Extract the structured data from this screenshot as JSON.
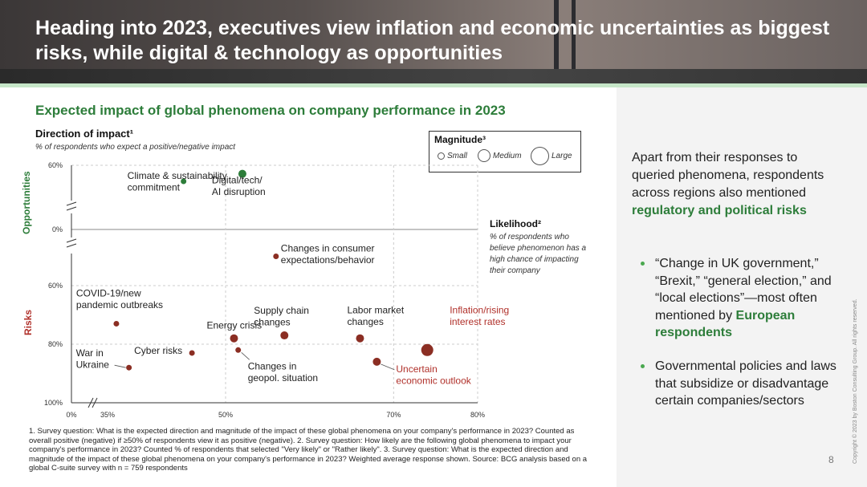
{
  "header": {
    "title": "Heading into 2023, executives view inflation and economic uncertainties as biggest risks, while digital & technology as opportunities"
  },
  "chart_title": "Expected impact of global phenomena on company performance in 2023",
  "direction": {
    "title": "Direction of impact¹",
    "subtitle": "% of respondents who expect a positive/negative impact"
  },
  "magnitude_legend": {
    "title": "Magnitude³",
    "small": "Small",
    "medium": "Medium",
    "large": "Large"
  },
  "likelihood": {
    "title": "Likelihood²",
    "subtitle": "% of respondents who believe phenomenon has a high chance of impacting their company"
  },
  "axis_side_labels": {
    "opportunities": "Opportunities",
    "risks": "Risks"
  },
  "colors": {
    "green": "#2d7d3a",
    "risk": "#8b2e23",
    "risk_label": "#b0302a"
  },
  "chart_data": {
    "type": "scatter",
    "x_axis": {
      "ticks": [
        "0%",
        "35%",
        "50%",
        "70%",
        "80%"
      ],
      "tick_values": [
        0,
        35,
        50,
        70,
        80
      ],
      "range": [
        0,
        80
      ],
      "break_between": [
        0,
        35
      ]
    },
    "y_axis_opportunities": {
      "ticks": [
        "60%",
        "0%"
      ],
      "tick_values": [
        60,
        0
      ]
    },
    "y_axis_risks": {
      "ticks": [
        "60%",
        "80%",
        "100%"
      ],
      "tick_values": [
        60,
        80,
        100
      ]
    },
    "points": [
      {
        "group": "opportunity",
        "label": "Climate & sustainability commitment",
        "x": 45,
        "y": 45,
        "size": "small",
        "color": "green"
      },
      {
        "group": "opportunity",
        "label": "Digital/tech/ AI disruption",
        "x": 52,
        "y": 52,
        "size": "medium",
        "color": "green"
      },
      {
        "group": "risk",
        "label": "Changes in consumer expectations/behavior",
        "x": 56,
        "y": 50,
        "size": "small",
        "color": "risk"
      },
      {
        "group": "risk",
        "label": "COVID-19/new pandemic outbreaks",
        "x": 37,
        "y": 73,
        "size": "small",
        "color": "risk"
      },
      {
        "group": "risk",
        "label": "Energy crisis",
        "x": 51,
        "y": 78,
        "size": "medium",
        "color": "risk"
      },
      {
        "group": "risk",
        "label": "Changes in geopol. situation",
        "x": 51.5,
        "y": 82,
        "size": "small",
        "color": "risk"
      },
      {
        "group": "risk",
        "label": "War in Ukraine",
        "x": 38.5,
        "y": 88,
        "size": "small",
        "color": "risk"
      },
      {
        "group": "risk",
        "label": "Cyber risks",
        "x": 46,
        "y": 83,
        "size": "small",
        "color": "risk"
      },
      {
        "group": "risk",
        "label": "Supply chain changes",
        "x": 57,
        "y": 77,
        "size": "medium",
        "color": "risk"
      },
      {
        "group": "risk",
        "label": "Labor market changes",
        "x": 66,
        "y": 78,
        "size": "medium",
        "color": "risk"
      },
      {
        "group": "risk",
        "label": "Uncertain economic outlook",
        "x": 68,
        "y": 86,
        "size": "medium",
        "color": "risk"
      },
      {
        "group": "risk",
        "label": "Inflation/rising interest rates",
        "x": 74,
        "y": 82,
        "size": "large",
        "color": "risk"
      }
    ]
  },
  "footnote": "1. Survey question: What is the expected direction and magnitude of the impact of these global phenomena on your company's performance in 2023? Counted as overall positive (negative) if ≥50% of respondents view it as positive (negative). 2. Survey question: How likely are the following global phenomena to impact your company's performance in 2023? Counted % of respondents that selected \"Very likely\" or \"Rather likely\". 3. Survey question: What is the expected direction and magnitude of the impact of these global phenomena on your company's performance in 2023? Weighted average response shown.  Source: BCG analysis based on a global C-suite survey with n = 759 respondents",
  "right_panel": {
    "intro": "Apart from their responses to queried phenomena, respondents across regions also mentioned ",
    "intro_highlight": "regulatory and political risks",
    "bullet1_text": "“Change in UK government,” “Brexit,” “general election,”  and “local elections”—most often mentioned by ",
    "bullet1_highlight": "European respondents",
    "bullet2_text": "Governmental policies and laws that subsidize or disadvantage certain companies/sectors"
  },
  "page_number": "8",
  "copyright": "Copyright © 2023 by Boston Consulting Group. All rights reserved."
}
